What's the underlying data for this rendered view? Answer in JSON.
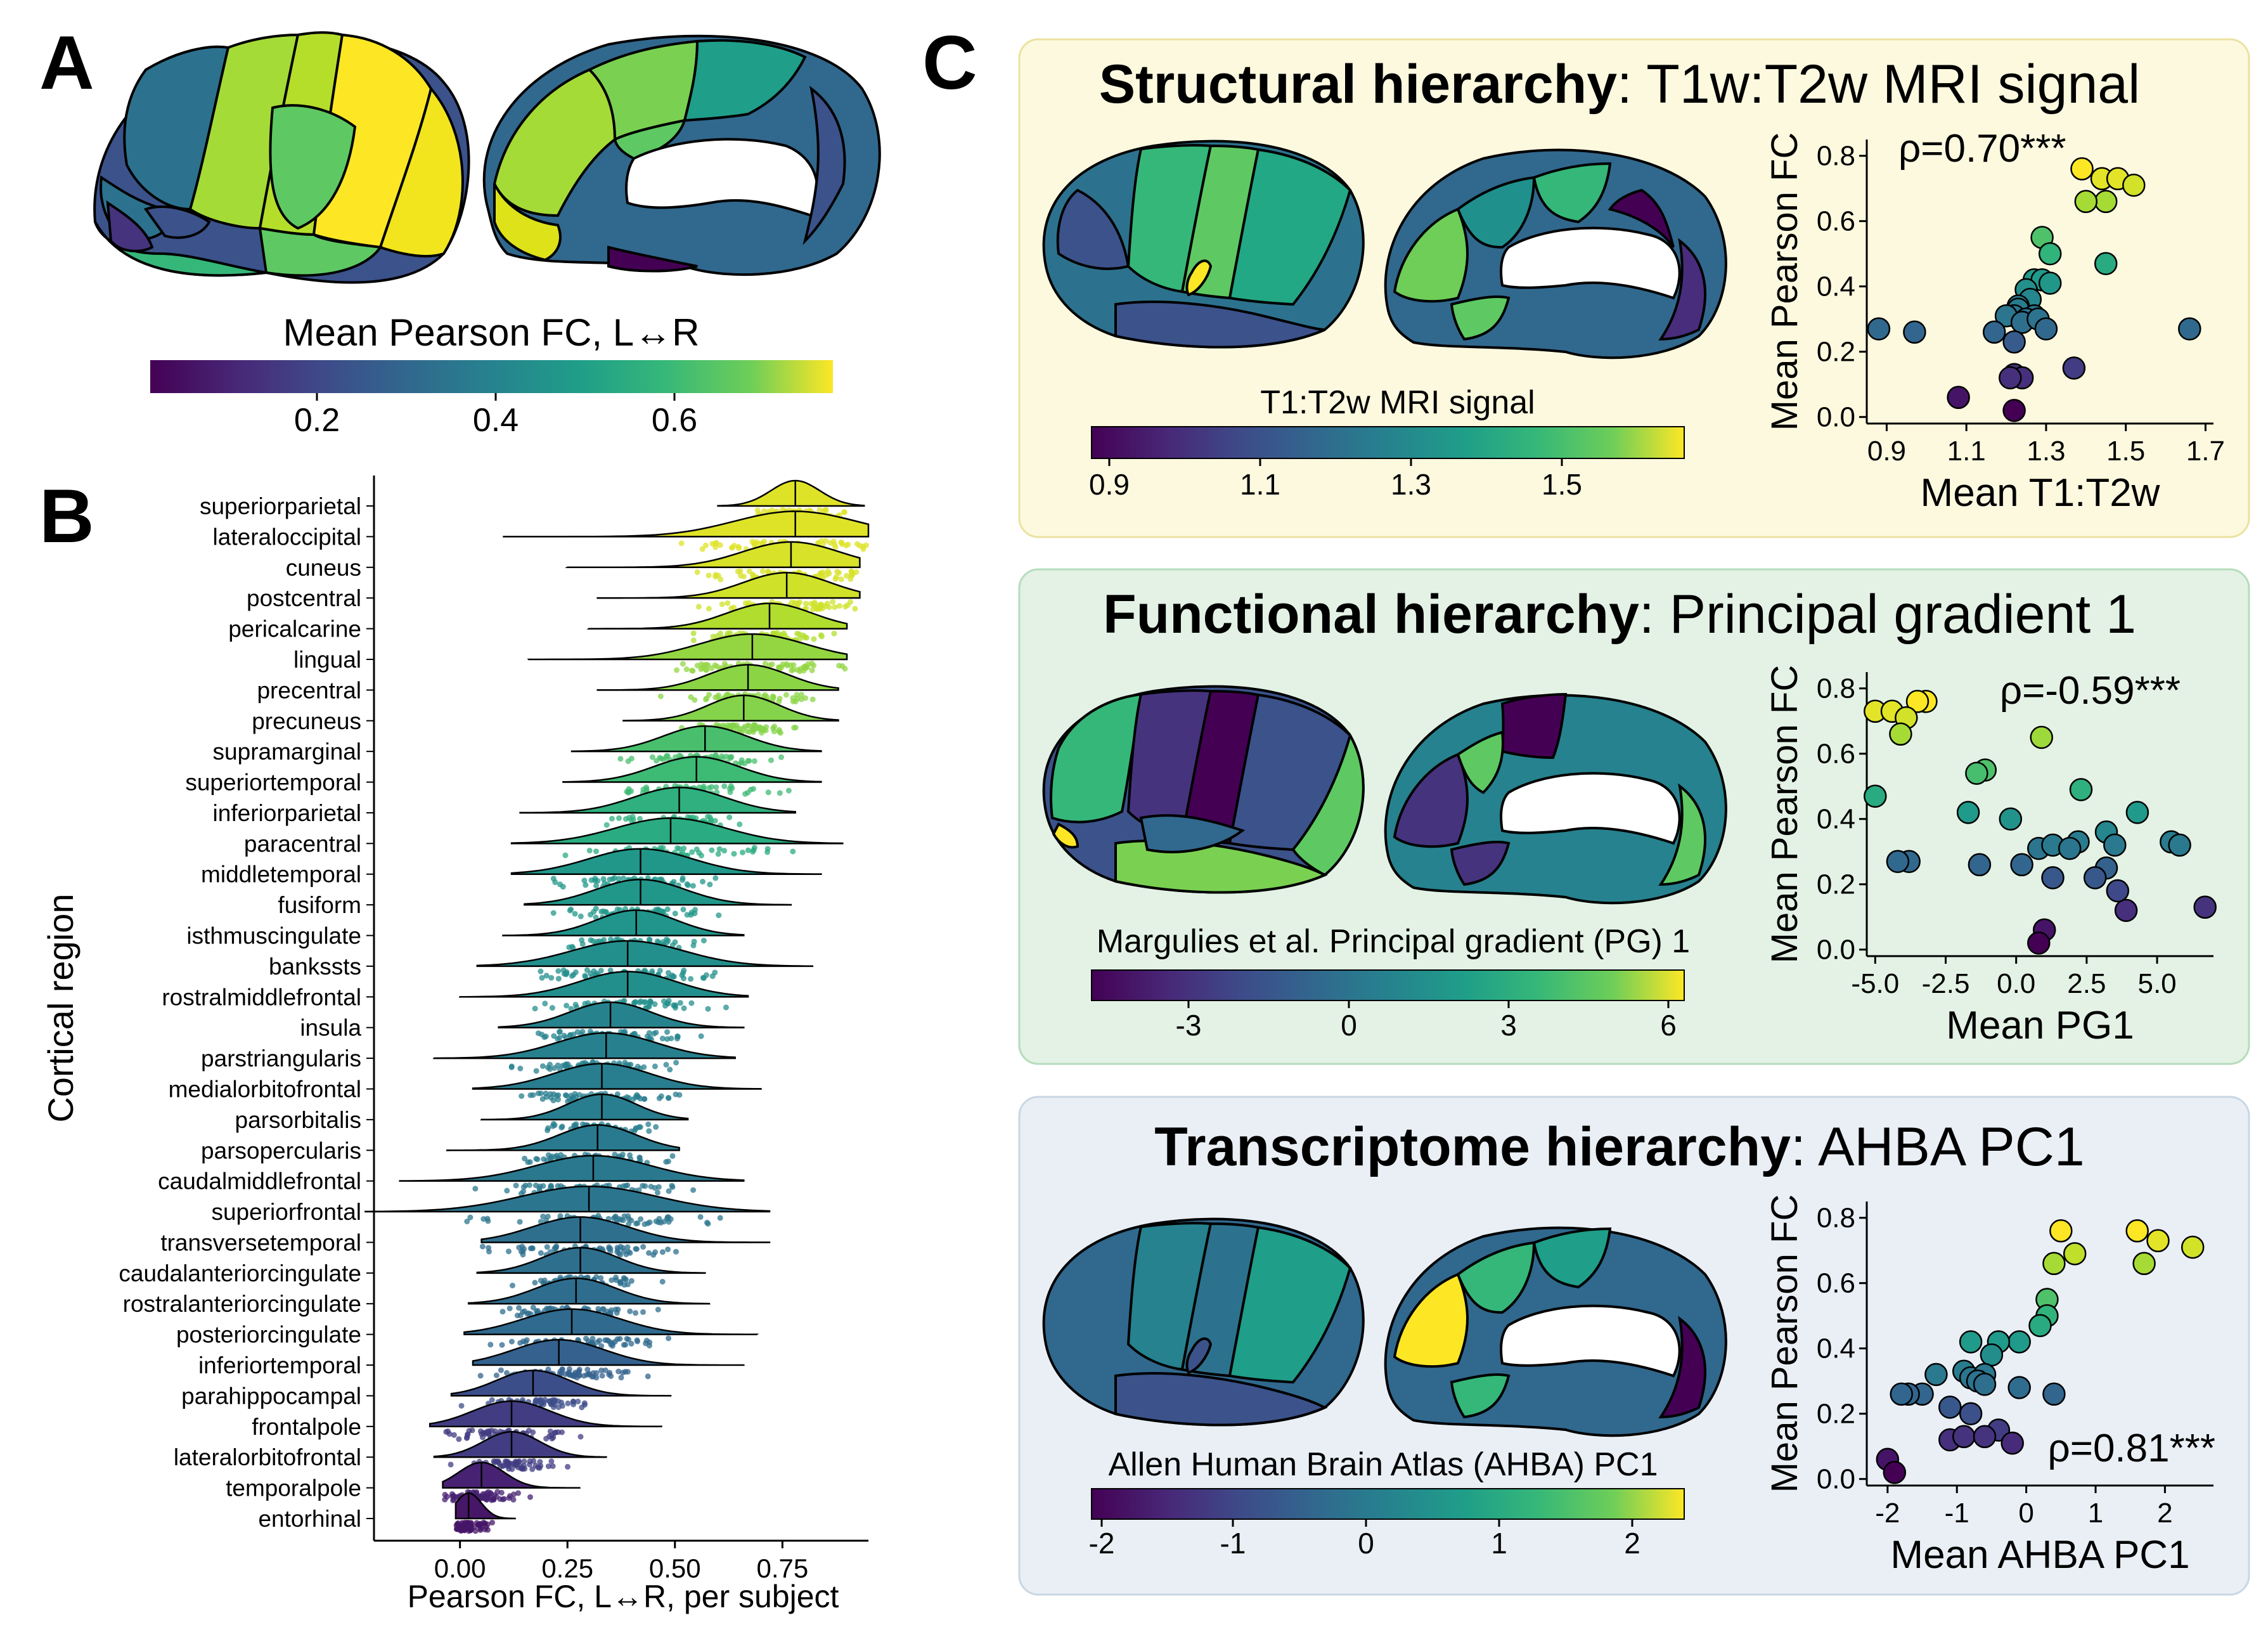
{
  "panel_labels": {
    "a": "A",
    "b": "B",
    "c": "C"
  },
  "panel_a": {
    "colorbar_label": "Mean Pearson FC, L↔R",
    "colorbar_ticks": [
      "0.2",
      "0.4",
      "0.6"
    ]
  },
  "panel_b": {
    "xlabel": "Pearson FC, L↔R, per subject",
    "ylabel": "Cortical region",
    "xticks": [
      "0.00",
      "0.25",
      "0.50",
      "0.75"
    ]
  },
  "panel_c": {
    "structural": {
      "title_bold": "Structural hierarchy",
      "title_rest": ": T1w:T2w MRI signal",
      "colorbar_label": "T1:T2w MRI signal",
      "colorbar_ticks": [
        "0.9",
        "1.1",
        "1.3",
        "1.5"
      ],
      "rho": "ρ=0.70***",
      "xlabel": "Mean T1:T2w",
      "ylabel": "Mean Pearson FC",
      "xticks": [
        "0.9",
        "1.1",
        "1.3",
        "1.5",
        "1.7"
      ],
      "yticks": [
        "0.0",
        "0.2",
        "0.4",
        "0.6",
        "0.8"
      ]
    },
    "functional": {
      "title_bold": "Functional hierarchy",
      "title_rest": ": Principal gradient 1",
      "colorbar_label": "Margulies et al. Principal gradient (PG) 1",
      "colorbar_ticks": [
        "-3",
        "0",
        "3",
        "6"
      ],
      "rho": "ρ=-0.59***",
      "xlabel": "Mean PG1",
      "ylabel": "Mean Pearson FC",
      "xticks": [
        "-5.0",
        "-2.5",
        "0.0",
        "2.5",
        "5.0"
      ],
      "yticks": [
        "0.0",
        "0.2",
        "0.4",
        "0.6",
        "0.8"
      ]
    },
    "transcriptome": {
      "title_bold": "Transcriptome hierarchy",
      "title_rest": ": AHBA PC1",
      "colorbar_label": "Allen Human Brain Atlas (AHBA) PC1",
      "colorbar_ticks": [
        "-2",
        "-1",
        "0",
        "1",
        "2"
      ],
      "rho": "ρ=0.81***",
      "xlabel": "Mean AHBA PC1",
      "ylabel": "Mean Pearson FC",
      "xticks": [
        "-2",
        "-1",
        "0",
        "1",
        "2"
      ],
      "yticks": [
        "0.0",
        "0.2",
        "0.4",
        "0.6",
        "0.8"
      ]
    }
  },
  "chart_data": [
    {
      "type": "violin",
      "xlabel": "Pearson FC, L↔R, per subject",
      "ylabel": "Cortical region",
      "xlim": [
        -0.2,
        0.95
      ],
      "categories": [
        "superiorparietal",
        "lateraloccipital",
        "cuneus",
        "postcentral",
        "pericalcarine",
        "lingual",
        "precentral",
        "precuneus",
        "supramarginal",
        "superiortemporal",
        "inferiorparietal",
        "paracentral",
        "middletemporal",
        "fusiform",
        "isthmuscingulate",
        "bankssts",
        "rostralmiddlefrontal",
        "insula",
        "parstriangularis",
        "medialorbitofrontal",
        "parsorbitalis",
        "parsopercularis",
        "caudalmiddlefrontal",
        "superiorfrontal",
        "transversetemporal",
        "caudalanteriorcingulate",
        "rostralanteriorcingulate",
        "posteriorcingulate",
        "inferiortemporal",
        "parahippocampal",
        "frontalpole",
        "lateralorbitofrontal",
        "temporalpole",
        "entorhinal"
      ],
      "medians": [
        0.78,
        0.78,
        0.77,
        0.76,
        0.72,
        0.68,
        0.67,
        0.66,
        0.57,
        0.55,
        0.51,
        0.49,
        0.42,
        0.42,
        0.41,
        0.39,
        0.39,
        0.35,
        0.34,
        0.33,
        0.33,
        0.32,
        0.31,
        0.3,
        0.28,
        0.28,
        0.27,
        0.26,
        0.23,
        0.17,
        0.12,
        0.12,
        0.05,
        0.02
      ],
      "mins": [
        0.6,
        0.1,
        0.25,
        0.32,
        0.3,
        0.16,
        0.32,
        0.38,
        0.26,
        0.24,
        0.14,
        0.12,
        0.12,
        0.15,
        0.1,
        0.04,
        0.0,
        0.09,
        -0.06,
        0.03,
        0.05,
        -0.03,
        -0.14,
        -0.22,
        0.05,
        0.04,
        0.02,
        0.01,
        0.03,
        -0.02,
        -0.07,
        -0.06,
        -0.04,
        -0.01
      ],
      "maxs": [
        0.94,
        0.95,
        0.93,
        0.93,
        0.9,
        0.9,
        0.88,
        0.88,
        0.84,
        0.84,
        0.78,
        0.89,
        0.84,
        0.77,
        0.66,
        0.82,
        0.67,
        0.66,
        0.64,
        0.7,
        0.53,
        0.51,
        0.66,
        0.72,
        0.72,
        0.57,
        0.58,
        0.69,
        0.66,
        0.49,
        0.47,
        0.34,
        0.28,
        0.13
      ]
    },
    {
      "type": "scatter",
      "xlabel": "Mean T1:T2w",
      "ylabel": "Mean Pearson FC",
      "xlim": [
        0.85,
        1.72
      ],
      "ylim": [
        -0.02,
        0.85
      ],
      "x": [
        1.39,
        1.44,
        1.48,
        1.52,
        1.45,
        1.4,
        1.29,
        1.31,
        1.45,
        1.27,
        1.29,
        1.25,
        1.31,
        1.26,
        1.23,
        1.23,
        1.27,
        1.22,
        1.2,
        1.25,
        1.24,
        1.28,
        1.17,
        1.22,
        1.3,
        0.88,
        0.97,
        1.66,
        1.22,
        1.37,
        1.24,
        1.21,
        1.08,
        1.22
      ],
      "y": [
        0.76,
        0.73,
        0.73,
        0.71,
        0.66,
        0.66,
        0.55,
        0.5,
        0.47,
        0.42,
        0.42,
        0.39,
        0.41,
        0.36,
        0.34,
        0.33,
        0.31,
        0.31,
        0.31,
        0.3,
        0.29,
        0.3,
        0.26,
        0.23,
        0.27,
        0.27,
        0.26,
        0.27,
        0.13,
        0.15,
        0.12,
        0.12,
        0.06,
        0.02
      ],
      "rho": "ρ=0.70***"
    },
    {
      "type": "scatter",
      "xlabel": "Mean PG1",
      "ylabel": "Mean Pearson FC",
      "xlim": [
        -5.3,
        7.0
      ],
      "ylim": [
        -0.02,
        0.85
      ],
      "x": [
        -3.2,
        -5.0,
        -3.5,
        -4.4,
        -3.9,
        -4.1,
        -1.1,
        -1.4,
        -5.0,
        2.3,
        0.9,
        -1.7,
        4.3,
        -0.2,
        5.5,
        3.2,
        0.8,
        2.2,
        -3.8,
        1.3,
        3.2,
        5.8,
        -1.3,
        0.2,
        1.9,
        -4.2,
        3.5,
        2.8,
        6.7,
        1.3,
        3.9,
        3.6,
        1.0,
        0.8
      ],
      "y": [
        0.76,
        0.73,
        0.76,
        0.73,
        0.71,
        0.66,
        0.55,
        0.54,
        0.47,
        0.49,
        0.65,
        0.42,
        0.42,
        0.4,
        0.33,
        0.36,
        0.31,
        0.33,
        0.27,
        0.32,
        0.25,
        0.32,
        0.26,
        0.26,
        0.31,
        0.27,
        0.32,
        0.22,
        0.13,
        0.22,
        0.12,
        0.18,
        0.06,
        0.02
      ],
      "rho": "ρ=-0.59***"
    },
    {
      "type": "scatter",
      "xlabel": "Mean AHBA PC1",
      "ylabel": "Mean Pearson FC",
      "xlim": [
        -2.3,
        2.7
      ],
      "ylim": [
        -0.02,
        0.85
      ],
      "x": [
        0.5,
        1.6,
        2.4,
        1.9,
        1.7,
        0.4,
        0.7,
        0.3,
        0.3,
        -0.8,
        -0.1,
        0.2,
        -0.4,
        -0.5,
        -0.9,
        -0.8,
        -0.6,
        -1.3,
        -1.5,
        -0.7,
        -0.1,
        0.4,
        -1.7,
        -0.6,
        -1.8,
        -1.1,
        -0.8,
        -0.4,
        -0.2,
        -1.1,
        -0.9,
        -0.6,
        -2.0,
        -1.9
      ],
      "y": [
        0.76,
        0.76,
        0.71,
        0.73,
        0.66,
        0.66,
        0.69,
        0.55,
        0.5,
        0.42,
        0.42,
        0.47,
        0.42,
        0.38,
        0.33,
        0.31,
        0.32,
        0.32,
        0.26,
        0.3,
        0.28,
        0.26,
        0.26,
        0.29,
        0.26,
        0.22,
        0.2,
        0.15,
        0.11,
        0.12,
        0.13,
        0.13,
        0.06,
        0.02
      ],
      "rho": "ρ=0.81***"
    }
  ]
}
